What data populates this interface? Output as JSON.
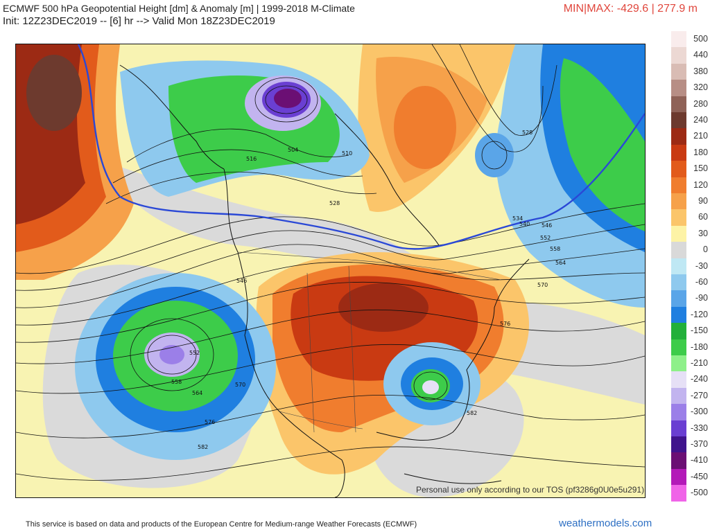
{
  "header": {
    "title_line1": "ECMWF 500 hPa Geopotential Height [dm] & Anomaly [m] | 1999-2018 M-Climate",
    "title_line2": "Init: 12Z23DEC2019 -- [6] hr --> Valid Mon 18Z23DEC2019",
    "minmax": "MIN|MAX: -429.6 | 277.9 m"
  },
  "legend": {
    "entries": [
      {
        "label": "500",
        "color": "#f9ecec"
      },
      {
        "label": "440",
        "color": "#ecd8d3"
      },
      {
        "label": "380",
        "color": "#d9bcb4"
      },
      {
        "label": "320",
        "color": "#b78e85"
      },
      {
        "label": "280",
        "color": "#8f6257"
      },
      {
        "label": "240",
        "color": "#6d3a2e"
      },
      {
        "label": "210",
        "color": "#9c2a14"
      },
      {
        "label": "180",
        "color": "#c93a12"
      },
      {
        "label": "150",
        "color": "#e25b1b"
      },
      {
        "label": "120",
        "color": "#f07d2e"
      },
      {
        "label": "90",
        "color": "#f6a14a"
      },
      {
        "label": "60",
        "color": "#fbc56a"
      },
      {
        "label": "30",
        "color": "#fdf3a6"
      },
      {
        "label": "0",
        "color": "#d9d9d9"
      },
      {
        "label": "-30",
        "color": "#bfe8f4"
      },
      {
        "label": "-60",
        "color": "#8ec9ee"
      },
      {
        "label": "-90",
        "color": "#5aa5e8"
      },
      {
        "label": "-120",
        "color": "#1f7fe0"
      },
      {
        "label": "-150",
        "color": "#22b03a"
      },
      {
        "label": "-180",
        "color": "#3dcc4a"
      },
      {
        "label": "-210",
        "color": "#8ef08a"
      },
      {
        "label": "-240",
        "color": "#e6e0f6"
      },
      {
        "label": "-270",
        "color": "#c2b4ef"
      },
      {
        "label": "-300",
        "color": "#9b7fe8"
      },
      {
        "label": "-330",
        "color": "#6a3fd2"
      },
      {
        "label": "-370",
        "color": "#40148d"
      },
      {
        "label": "-410",
        "color": "#6b0f74"
      },
      {
        "label": "-450",
        "color": "#b31ab8"
      },
      {
        "label": "-500",
        "color": "#f064e8"
      }
    ]
  },
  "map": {
    "contour_labels": [
      "516",
      "504",
      "510",
      "528",
      "528",
      "534",
      "540",
      "546",
      "552",
      "558",
      "564",
      "570",
      "576",
      "546",
      "552",
      "558",
      "564",
      "570",
      "576",
      "582",
      "582"
    ],
    "watermark": "Personal use only according to our TOS (pf3286g0U0e5u291)"
  },
  "footer": {
    "note": "This service is based on data and products of the European Centre for Medium-range Weather Forecasts (ECMWF)",
    "site": "weathermodels.com"
  }
}
